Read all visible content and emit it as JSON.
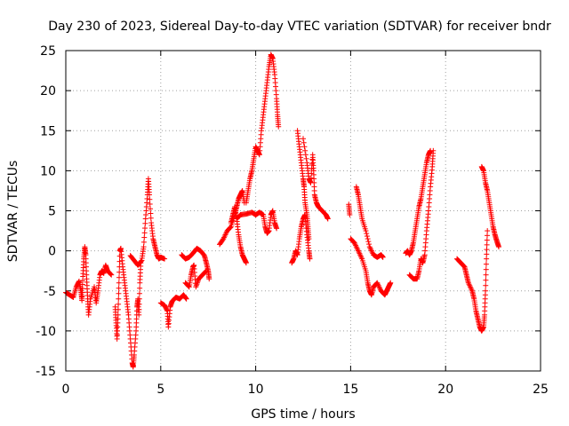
{
  "chart_data": {
    "type": "scatter",
    "title": "Day 230 of 2023, Sidereal Day-to-day VTEC variation (SDTVAR) for receiver bndr",
    "xlabel": "GPS time / hours",
    "ylabel": "SDTVAR / TECUs",
    "xlim": [
      0,
      25
    ],
    "ylim": [
      -15,
      25
    ],
    "xticks": [
      "0",
      "5",
      "10",
      "15",
      "20",
      "25"
    ],
    "yticks": [
      "-15",
      "-10",
      "-5",
      "0",
      "5",
      "10",
      "15",
      "20",
      "25"
    ],
    "grid": true,
    "marker": "plus",
    "series": [
      {
        "name": "SDTVAR",
        "color": "#ff0000",
        "segments": [
          [
            [
              0.0,
              -5.2
            ],
            [
              0.2,
              -5.5
            ],
            [
              0.4,
              -5.8
            ],
            [
              0.55,
              -4.5
            ],
            [
              0.7,
              -3.8
            ],
            [
              0.8,
              -5.0
            ],
            [
              0.85,
              -6.2
            ],
            [
              0.9,
              -3.2
            ],
            [
              0.95,
              -1.0
            ],
            [
              1.0,
              0.5
            ],
            [
              1.05,
              -0.5
            ],
            [
              1.1,
              -3.5
            ],
            [
              1.15,
              -6.0
            ],
            [
              1.2,
              -8.0
            ],
            [
              1.3,
              -6.0
            ],
            [
              1.5,
              -4.5
            ],
            [
              1.6,
              -6.5
            ],
            [
              1.7,
              -5.0
            ],
            [
              1.8,
              -3.0
            ],
            [
              1.9,
              -2.5
            ],
            [
              2.0,
              -2.8
            ],
            [
              2.1,
              -1.8
            ],
            [
              2.2,
              -2.5
            ],
            [
              2.4,
              -3.0
            ]
          ],
          [
            [
              2.6,
              -7.0
            ],
            [
              2.65,
              -9.0
            ],
            [
              2.7,
              -11.0
            ],
            [
              2.75,
              -8.0
            ],
            [
              2.8,
              -4.0
            ],
            [
              2.85,
              0.0
            ],
            [
              2.9,
              0.3
            ],
            [
              3.0,
              -2.0
            ],
            [
              3.1,
              -4.0
            ],
            [
              3.2,
              -6.0
            ],
            [
              3.3,
              -8.0
            ],
            [
              3.4,
              -11.0
            ],
            [
              3.5,
              -14.0
            ],
            [
              3.55,
              -14.5
            ],
            [
              3.6,
              -13.0
            ],
            [
              3.7,
              -10.0
            ],
            [
              3.75,
              -7.0
            ],
            [
              3.8,
              -6.0
            ],
            [
              3.85,
              -8.0
            ],
            [
              3.9,
              -4.0
            ],
            [
              3.95,
              -1.5
            ]
          ],
          [
            [
              3.4,
              -0.6
            ],
            [
              3.6,
              -1.2
            ],
            [
              3.8,
              -1.8
            ],
            [
              4.0,
              -1.2
            ],
            [
              4.1,
              0.5
            ],
            [
              4.2,
              4.0
            ],
            [
              4.3,
              7.0
            ],
            [
              4.35,
              9.0
            ],
            [
              4.4,
              7.0
            ],
            [
              4.5,
              3.5
            ],
            [
              4.6,
              1.5
            ],
            [
              4.7,
              0.5
            ],
            [
              4.8,
              -0.5
            ],
            [
              4.9,
              -1.0
            ],
            [
              5.0,
              -0.8
            ],
            [
              5.2,
              -1.0
            ]
          ],
          [
            [
              5.0,
              -6.5
            ],
            [
              5.2,
              -6.8
            ],
            [
              5.35,
              -7.5
            ],
            [
              5.4,
              -9.5
            ],
            [
              5.5,
              -7.0
            ],
            [
              5.6,
              -6.3
            ],
            [
              5.8,
              -5.8
            ],
            [
              6.0,
              -6.0
            ],
            [
              6.2,
              -5.5
            ],
            [
              6.35,
              -6.0
            ]
          ],
          [
            [
              6.3,
              -4.0
            ],
            [
              6.5,
              -4.5
            ],
            [
              6.6,
              -3.0
            ],
            [
              6.7,
              -2.0
            ],
            [
              6.75,
              -1.8
            ],
            [
              6.85,
              -4.5
            ],
            [
              7.0,
              -3.5
            ],
            [
              7.2,
              -3.0
            ],
            [
              7.4,
              -2.5
            ]
          ],
          [
            [
              6.1,
              -0.5
            ],
            [
              6.3,
              -1.0
            ],
            [
              6.5,
              -0.8
            ],
            [
              6.7,
              -0.3
            ],
            [
              6.9,
              0.3
            ],
            [
              7.1,
              0.0
            ],
            [
              7.3,
              -0.6
            ],
            [
              7.4,
              -1.5
            ],
            [
              7.5,
              -2.5
            ],
            [
              7.55,
              -3.5
            ]
          ],
          [
            [
              8.1,
              0.8
            ],
            [
              8.3,
              1.5
            ],
            [
              8.5,
              2.5
            ],
            [
              8.7,
              3.0
            ],
            [
              8.9,
              4.5
            ],
            [
              9.0,
              5.5
            ],
            [
              9.1,
              6.5
            ],
            [
              9.2,
              7.0
            ],
            [
              9.3,
              7.5
            ],
            [
              9.4,
              6.0
            ]
          ],
          [
            [
              8.7,
              3.5
            ],
            [
              8.8,
              4.5
            ],
            [
              8.9,
              5.5
            ],
            [
              9.0,
              4.0
            ],
            [
              9.1,
              2.0
            ],
            [
              9.2,
              0.5
            ],
            [
              9.3,
              -0.5
            ],
            [
              9.4,
              -1.0
            ],
            [
              9.5,
              -1.5
            ]
          ],
          [
            [
              9.5,
              6.0
            ],
            [
              9.6,
              7.5
            ],
            [
              9.7,
              9.0
            ],
            [
              9.8,
              10.0
            ],
            [
              9.9,
              11.5
            ],
            [
              10.0,
              13.0
            ],
            [
              10.1,
              12.5
            ],
            [
              10.2,
              12.0
            ],
            [
              10.3,
              15.0
            ],
            [
              10.4,
              17.0
            ],
            [
              10.5,
              19.0
            ],
            [
              10.6,
              21.0
            ],
            [
              10.7,
              23.0
            ],
            [
              10.8,
              24.5
            ],
            [
              10.9,
              24.0
            ],
            [
              11.0,
              22.0
            ],
            [
              11.1,
              19.0
            ],
            [
              11.15,
              17.0
            ],
            [
              11.2,
              15.5
            ]
          ],
          [
            [
              9.0,
              4.0
            ],
            [
              9.2,
              4.5
            ],
            [
              9.5,
              4.6
            ],
            [
              9.8,
              4.8
            ],
            [
              10.0,
              4.5
            ],
            [
              10.2,
              4.8
            ],
            [
              10.4,
              4.5
            ],
            [
              10.5,
              3.0
            ],
            [
              10.6,
              2.2
            ],
            [
              10.7,
              2.5
            ],
            [
              10.8,
              4.5
            ],
            [
              10.9,
              5.0
            ],
            [
              11.0,
              3.5
            ],
            [
              11.1,
              2.8
            ]
          ],
          [
            [
              11.9,
              -1.5
            ],
            [
              12.0,
              -1.0
            ],
            [
              12.1,
              0.0
            ],
            [
              12.2,
              -0.5
            ],
            [
              12.3,
              1.5
            ],
            [
              12.4,
              3.0
            ],
            [
              12.5,
              4.0
            ],
            [
              12.6,
              4.5
            ],
            [
              12.7,
              2.0
            ],
            [
              12.8,
              0.0
            ],
            [
              12.85,
              -1.0
            ]
          ],
          [
            [
              12.2,
              15.0
            ],
            [
              12.3,
              13.0
            ],
            [
              12.4,
              11.0
            ],
            [
              12.5,
              9.0
            ],
            [
              12.55,
              8.0
            ],
            [
              12.6,
              6.0
            ],
            [
              12.7,
              4.5
            ],
            [
              12.75,
              3.0
            ],
            [
              12.8,
              1.5
            ]
          ],
          [
            [
              12.5,
              14.0
            ],
            [
              12.7,
              11.0
            ],
            [
              12.8,
              9.0
            ],
            [
              12.9,
              8.5
            ],
            [
              13.0,
              12.0
            ],
            [
              13.05,
              10.0
            ],
            [
              13.1,
              7.0
            ],
            [
              13.2,
              6.0
            ],
            [
              13.3,
              5.5
            ],
            [
              13.5,
              5.0
            ],
            [
              13.7,
              4.5
            ],
            [
              13.8,
              4.0
            ]
          ],
          [
            [
              14.9,
              5.8
            ],
            [
              14.95,
              4.5
            ]
          ],
          [
            [
              15.0,
              1.5
            ],
            [
              15.2,
              1.0
            ],
            [
              15.4,
              0.0
            ],
            [
              15.6,
              -1.0
            ],
            [
              15.8,
              -2.5
            ],
            [
              15.9,
              -4.0
            ],
            [
              16.0,
              -5.0
            ],
            [
              16.1,
              -5.5
            ],
            [
              16.2,
              -4.5
            ],
            [
              16.4,
              -4.0
            ],
            [
              16.6,
              -5.0
            ],
            [
              16.8,
              -5.5
            ],
            [
              16.9,
              -5.0
            ],
            [
              17.0,
              -4.5
            ],
            [
              17.1,
              -4.0
            ]
          ],
          [
            [
              15.3,
              8.0
            ],
            [
              15.4,
              7.0
            ],
            [
              15.5,
              5.5
            ],
            [
              15.6,
              4.0
            ],
            [
              15.8,
              2.5
            ],
            [
              16.0,
              0.5
            ],
            [
              16.2,
              -0.5
            ],
            [
              16.4,
              -0.8
            ],
            [
              16.6,
              -0.5
            ],
            [
              16.7,
              -0.8
            ]
          ],
          [
            [
              17.9,
              -0.3
            ],
            [
              18.0,
              0.0
            ],
            [
              18.1,
              -0.5
            ],
            [
              18.2,
              0.0
            ],
            [
              18.3,
              1.0
            ],
            [
              18.4,
              2.5
            ],
            [
              18.5,
              4.0
            ],
            [
              18.6,
              5.5
            ],
            [
              18.7,
              6.5
            ],
            [
              18.8,
              8.0
            ],
            [
              18.9,
              9.5
            ],
            [
              19.0,
              11.0
            ],
            [
              19.1,
              12.0
            ],
            [
              19.2,
              12.5
            ]
          ],
          [
            [
              18.1,
              -3.0
            ],
            [
              18.3,
              -3.5
            ],
            [
              18.5,
              -3.5
            ],
            [
              18.6,
              -2.5
            ],
            [
              18.7,
              -1.0
            ],
            [
              18.8,
              -1.5
            ],
            [
              18.9,
              -0.5
            ],
            [
              19.0,
              2.5
            ],
            [
              19.1,
              5.0
            ],
            [
              19.2,
              8.0
            ],
            [
              19.3,
              10.5
            ],
            [
              19.35,
              12.5
            ]
          ],
          [
            [
              20.6,
              -1.0
            ],
            [
              20.8,
              -1.5
            ],
            [
              21.0,
              -2.0
            ],
            [
              21.1,
              -3.0
            ],
            [
              21.2,
              -4.0
            ],
            [
              21.4,
              -5.0
            ],
            [
              21.5,
              -6.0
            ],
            [
              21.6,
              -7.5
            ],
            [
              21.7,
              -8.5
            ],
            [
              21.8,
              -9.5
            ],
            [
              21.9,
              -10.0
            ],
            [
              22.0,
              -9.5
            ],
            [
              22.05,
              -8.0
            ],
            [
              22.1,
              -5.0
            ],
            [
              22.15,
              -1.0
            ],
            [
              22.2,
              2.5
            ]
          ],
          [
            [
              21.9,
              10.5
            ],
            [
              22.0,
              10.0
            ],
            [
              22.1,
              8.5
            ],
            [
              22.2,
              7.5
            ],
            [
              22.3,
              6.0
            ],
            [
              22.4,
              4.5
            ],
            [
              22.5,
              3.0
            ],
            [
              22.6,
              2.0
            ],
            [
              22.7,
              1.2
            ],
            [
              22.8,
              0.5
            ]
          ]
        ]
      }
    ]
  }
}
